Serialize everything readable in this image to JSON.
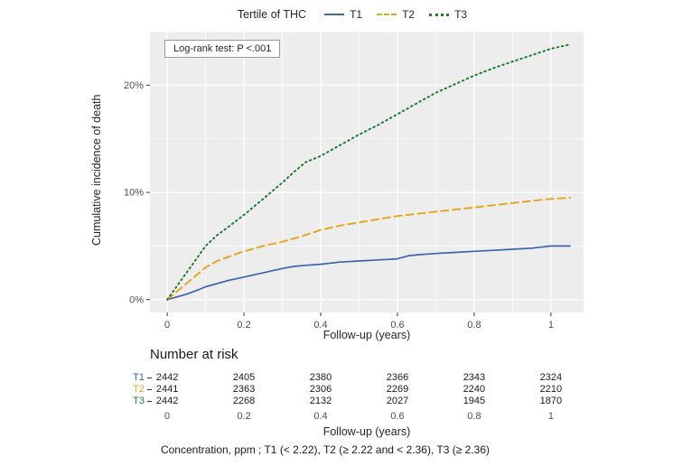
{
  "figure": {
    "legend": {
      "title": "Tertile of THC",
      "items": [
        {
          "label": "T1",
          "dash": "solid"
        },
        {
          "label": "T2",
          "dash": "dashed"
        },
        {
          "label": "T3",
          "dash": "dotted"
        }
      ]
    },
    "annotation": "Log-rank test: P <.001"
  },
  "colors": {
    "t1": "#3e64ad",
    "t2": "#e3a820",
    "t3": "#1e7d33",
    "panel_bg": "#ededed",
    "grid": "#ffffff",
    "tick_text": "#4d4d4d",
    "text": "#262626"
  },
  "chart_data": {
    "type": "line",
    "title": "",
    "xlabel": "Follow-up (years)",
    "ylabel": "Cumulative incidence of death",
    "xlim": [
      -0.045,
      1.085
    ],
    "ylim": [
      -1.2,
      25
    ],
    "x_ticks": [
      0,
      0.2,
      0.4,
      0.6,
      0.8,
      1
    ],
    "x_tick_labels": [
      "0",
      "0.2",
      "0.4",
      "0.6",
      "0.8",
      "1"
    ],
    "x_minor_ticks": [
      0.1,
      0.3,
      0.5,
      0.7,
      0.9
    ],
    "y_ticks": [
      0,
      10,
      20
    ],
    "y_tick_labels": [
      "0%",
      "10%",
      "20%"
    ],
    "y_minor_ticks": [
      5,
      15,
      25
    ],
    "grid": true,
    "legend_position": "top",
    "annotation": "Log-rank test: P <.001",
    "series": [
      {
        "name": "T1",
        "color": "#3e64ad",
        "dash": "solid",
        "x": [
          0,
          0.02,
          0.05,
          0.08,
          0.1,
          0.13,
          0.16,
          0.2,
          0.25,
          0.3,
          0.33,
          0.36,
          0.4,
          0.45,
          0.5,
          0.55,
          0.6,
          0.63,
          0.66,
          0.7,
          0.75,
          0.8,
          0.85,
          0.9,
          0.95,
          1.0,
          1.05
        ],
        "y": [
          0,
          0.2,
          0.5,
          0.9,
          1.2,
          1.5,
          1.8,
          2.1,
          2.5,
          2.9,
          3.1,
          3.2,
          3.3,
          3.5,
          3.6,
          3.7,
          3.8,
          4.1,
          4.2,
          4.3,
          4.4,
          4.5,
          4.6,
          4.7,
          4.8,
          5.0,
          5.0
        ]
      },
      {
        "name": "T2",
        "color": "#e3a820",
        "dash": "dashed",
        "x": [
          0,
          0.02,
          0.05,
          0.08,
          0.1,
          0.13,
          0.16,
          0.2,
          0.25,
          0.3,
          0.35,
          0.4,
          0.45,
          0.5,
          0.55,
          0.6,
          0.65,
          0.7,
          0.75,
          0.8,
          0.85,
          0.9,
          0.95,
          1.0,
          1.05
        ],
        "y": [
          0,
          0.6,
          1.5,
          2.4,
          3.0,
          3.6,
          4.0,
          4.5,
          5.0,
          5.4,
          5.9,
          6.5,
          6.9,
          7.2,
          7.5,
          7.8,
          8.0,
          8.2,
          8.4,
          8.6,
          8.8,
          9.0,
          9.2,
          9.4,
          9.5
        ]
      },
      {
        "name": "T3",
        "color": "#1e7d33",
        "dash": "dotted",
        "x": [
          0,
          0.02,
          0.05,
          0.08,
          0.1,
          0.13,
          0.16,
          0.2,
          0.25,
          0.3,
          0.33,
          0.36,
          0.4,
          0.45,
          0.5,
          0.55,
          0.6,
          0.65,
          0.7,
          0.75,
          0.8,
          0.85,
          0.9,
          0.95,
          1.0,
          1.05
        ],
        "y": [
          0,
          1.0,
          2.5,
          4.0,
          5.0,
          6.0,
          6.8,
          7.9,
          9.4,
          10.9,
          11.9,
          12.8,
          13.4,
          14.4,
          15.4,
          16.3,
          17.3,
          18.3,
          19.3,
          20.1,
          20.9,
          21.6,
          22.2,
          22.8,
          23.4,
          23.8
        ]
      }
    ]
  },
  "risk_table": {
    "title": "Number at risk",
    "xlabel": "Follow-up (years)",
    "x_ticks": [
      0,
      0.2,
      0.4,
      0.6,
      0.8,
      1
    ],
    "x_tick_labels": [
      "0",
      "0.2",
      "0.4",
      "0.6",
      "0.8",
      "1"
    ],
    "rows": [
      {
        "label": "T1",
        "color": "#3e64ad",
        "values": [
          "2442",
          "2405",
          "2380",
          "2366",
          "2343",
          "2324"
        ]
      },
      {
        "label": "T2",
        "color": "#e3a820",
        "values": [
          "2441",
          "2363",
          "2306",
          "2269",
          "2240",
          "2210"
        ]
      },
      {
        "label": "T3",
        "color": "#1e7d33",
        "values": [
          "2442",
          "2268",
          "2132",
          "2027",
          "1945",
          "1870"
        ]
      }
    ]
  },
  "caption": "Concentration, ppm ; T1 (< 2.22), T2 (≥ 2.22 and < 2.36), T3 (≥ 2.36)"
}
